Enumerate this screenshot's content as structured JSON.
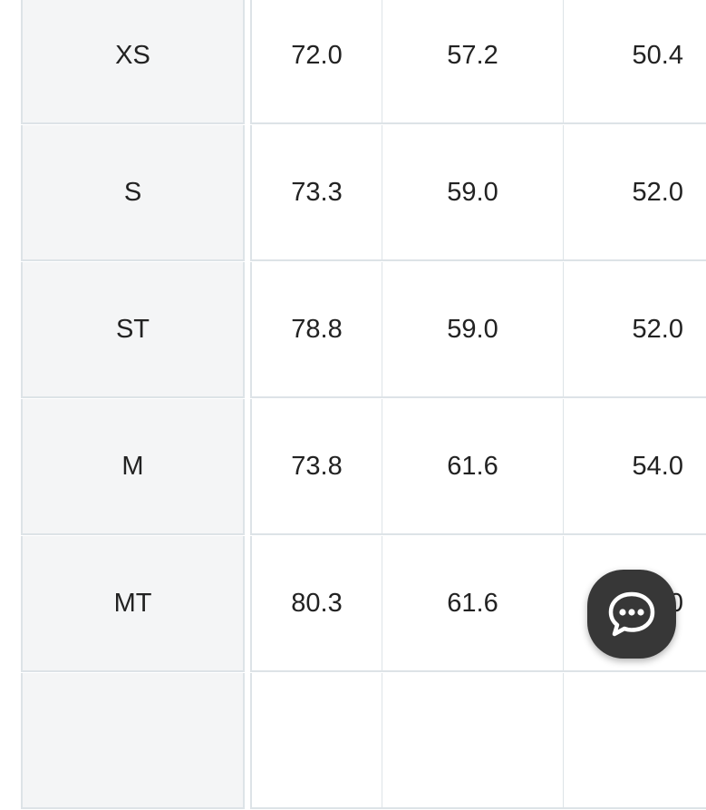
{
  "size_table": {
    "rows": [
      {
        "size": "XS",
        "values": [
          "72.0",
          "57.2",
          "50.4"
        ]
      },
      {
        "size": "S",
        "values": [
          "73.3",
          "59.0",
          "52.0"
        ]
      },
      {
        "size": "ST",
        "values": [
          "78.8",
          "59.0",
          "52.0"
        ]
      },
      {
        "size": "M",
        "values": [
          "73.8",
          "61.6",
          "54.0"
        ]
      },
      {
        "size": "MT",
        "values": [
          "80.3",
          "61.6",
          "54.0"
        ]
      },
      {
        "size": "",
        "values": [
          "",
          "",
          ""
        ]
      }
    ]
  },
  "chat_button": {
    "icon": "chat-bubble-icon",
    "color": "#373737"
  }
}
